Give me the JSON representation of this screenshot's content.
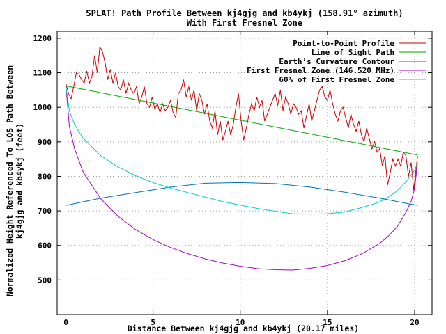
{
  "chart_data": {
    "type": "line",
    "title": "SPLAT! Path Profile Between kj4gjg and kb4ykj (158.91° azimuth)",
    "subtitle": "With First Fresnel Zone",
    "xlabel": "Distance Between kj4gjg and kb4ykj (20.17 miles)",
    "ylabel_line1": "Normalized Height Referenced To LOS Path Between",
    "ylabel_line2": "kj4gjg and kb4ykj (feet)",
    "xlim": [
      -0.5,
      21
    ],
    "ylim": [
      400,
      1220
    ],
    "xticks": [
      0,
      5,
      10,
      15,
      20
    ],
    "yticks": [
      500,
      600,
      700,
      800,
      900,
      1000,
      1100,
      1200
    ],
    "grid": true,
    "legend_position": "top-right",
    "series": [
      {
        "name": "Point-to-Point Profile",
        "color": "#cc0000",
        "x": [
          0,
          0.15,
          0.3,
          0.45,
          0.6,
          0.75,
          0.9,
          1.05,
          1.2,
          1.35,
          1.5,
          1.65,
          1.8,
          1.95,
          2.1,
          2.25,
          2.4,
          2.55,
          2.7,
          2.85,
          3.0,
          3.15,
          3.3,
          3.45,
          3.6,
          3.75,
          3.9,
          4.05,
          4.2,
          4.35,
          4.5,
          4.65,
          4.8,
          4.95,
          5.1,
          5.25,
          5.4,
          5.55,
          5.7,
          5.85,
          6.0,
          6.15,
          6.3,
          6.45,
          6.6,
          6.75,
          6.9,
          7.05,
          7.2,
          7.35,
          7.5,
          7.65,
          7.8,
          7.95,
          8.1,
          8.25,
          8.4,
          8.55,
          8.7,
          8.85,
          9.0,
          9.15,
          9.3,
          9.45,
          9.6,
          9.75,
          9.9,
          10.05,
          10.2,
          10.35,
          10.5,
          10.65,
          10.8,
          10.95,
          11.1,
          11.25,
          11.4,
          11.55,
          11.7,
          11.85,
          12.0,
          12.15,
          12.3,
          12.45,
          12.6,
          12.75,
          12.9,
          13.05,
          13.2,
          13.35,
          13.5,
          13.65,
          13.8,
          13.95,
          14.1,
          14.25,
          14.4,
          14.55,
          14.7,
          14.85,
          15.0,
          15.15,
          15.3,
          15.45,
          15.6,
          15.75,
          15.9,
          16.05,
          16.2,
          16.35,
          16.5,
          16.65,
          16.8,
          16.95,
          17.1,
          17.25,
          17.4,
          17.55,
          17.7,
          17.85,
          18.0,
          18.15,
          18.3,
          18.45,
          18.6,
          18.75,
          18.9,
          19.05,
          19.2,
          19.35,
          19.5,
          19.65,
          19.8,
          19.95,
          20.17
        ],
        "y": [
          1070,
          1040,
          1025,
          1060,
          1100,
          1095,
          1080,
          1070,
          1105,
          1070,
          1090,
          1150,
          1100,
          1175,
          1160,
          1130,
          1080,
          1110,
          1070,
          1100,
          1060,
          1050,
          1080,
          1040,
          1070,
          1050,
          1040,
          1060,
          1010,
          1030,
          1060,
          1010,
          1000,
          1030,
          995,
          1010,
          985,
          1010,
          990,
          1000,
          1020,
          985,
          970,
          1040,
          1050,
          1080,
          1030,
          1060,
          1020,
          1050,
          990,
          1040,
          1020,
          980,
          1010,
          960,
          940,
          990,
          920,
          960,
          905,
          930,
          960,
          920,
          950,
          1000,
          1040,
          960,
          905,
          940,
          980,
          1010,
          990,
          1030,
          1000,
          1020,
          960,
          980,
          1000,
          1020,
          1040,
          1005,
          1050,
          990,
          1030,
          1010,
          980,
          1010,
          1000,
          980,
          990,
          940,
          975,
          1010,
          960,
          990,
          1020,
          1050,
          1060,
          1030,
          1020,
          1050,
          1010,
          980,
          960,
          990,
          1000,
          970,
          940,
          980,
          950,
          930,
          960,
          920,
          900,
          940,
          910,
          880,
          900,
          870,
          880,
          830,
          860,
          775,
          810,
          850,
          830,
          850,
          830,
          870,
          860,
          800,
          840,
          760,
          860
        ]
      },
      {
        "name": "Line of Sight Path",
        "color": "#00aa00",
        "x": [
          0,
          20.17
        ],
        "y": [
          1062,
          862
        ]
      },
      {
        "name": "Earth’s Curvature Contour",
        "color": "#0070c0",
        "x": [
          0,
          2,
          4,
          6,
          8,
          10,
          12,
          14,
          16,
          18,
          20.17
        ],
        "y": [
          716,
          737,
          753,
          769,
          780,
          782,
          779,
          769,
          754,
          737,
          716
        ]
      },
      {
        "name": "First Fresnel Zone (146.520 MHz)",
        "color": "#aa00cc",
        "x": [
          0,
          0.2,
          0.5,
          1,
          2,
          3,
          4,
          5,
          6,
          7,
          8,
          9,
          10,
          11,
          12,
          13,
          14,
          15,
          16,
          17,
          18,
          18.5,
          19,
          19.5,
          19.8,
          20.0,
          20.17
        ],
        "y": [
          1065,
          945,
          880,
          812,
          735,
          684,
          646,
          617,
          594,
          576,
          561,
          549,
          540,
          533,
          530,
          529,
          534,
          542,
          556,
          576,
          606,
          627,
          654,
          696,
          728,
          765,
          840
        ]
      },
      {
        "name": "60% of First Fresnel Zone",
        "color": "#00cccc",
        "x": [
          0,
          0.2,
          0.5,
          1,
          2,
          3,
          4,
          5,
          6,
          7,
          8,
          9,
          10,
          11,
          12,
          13,
          14,
          15,
          16,
          17,
          18,
          18.5,
          19,
          19.5,
          19.8,
          20.0,
          20.17
        ],
        "y": [
          1063,
          990,
          950,
          910,
          860,
          827,
          802,
          782,
          766,
          753,
          740,
          727,
          717,
          707,
          699,
          692,
          691,
          692,
          697,
          710,
          726,
          740,
          758,
          784,
          804,
          818,
          840
        ]
      }
    ]
  }
}
